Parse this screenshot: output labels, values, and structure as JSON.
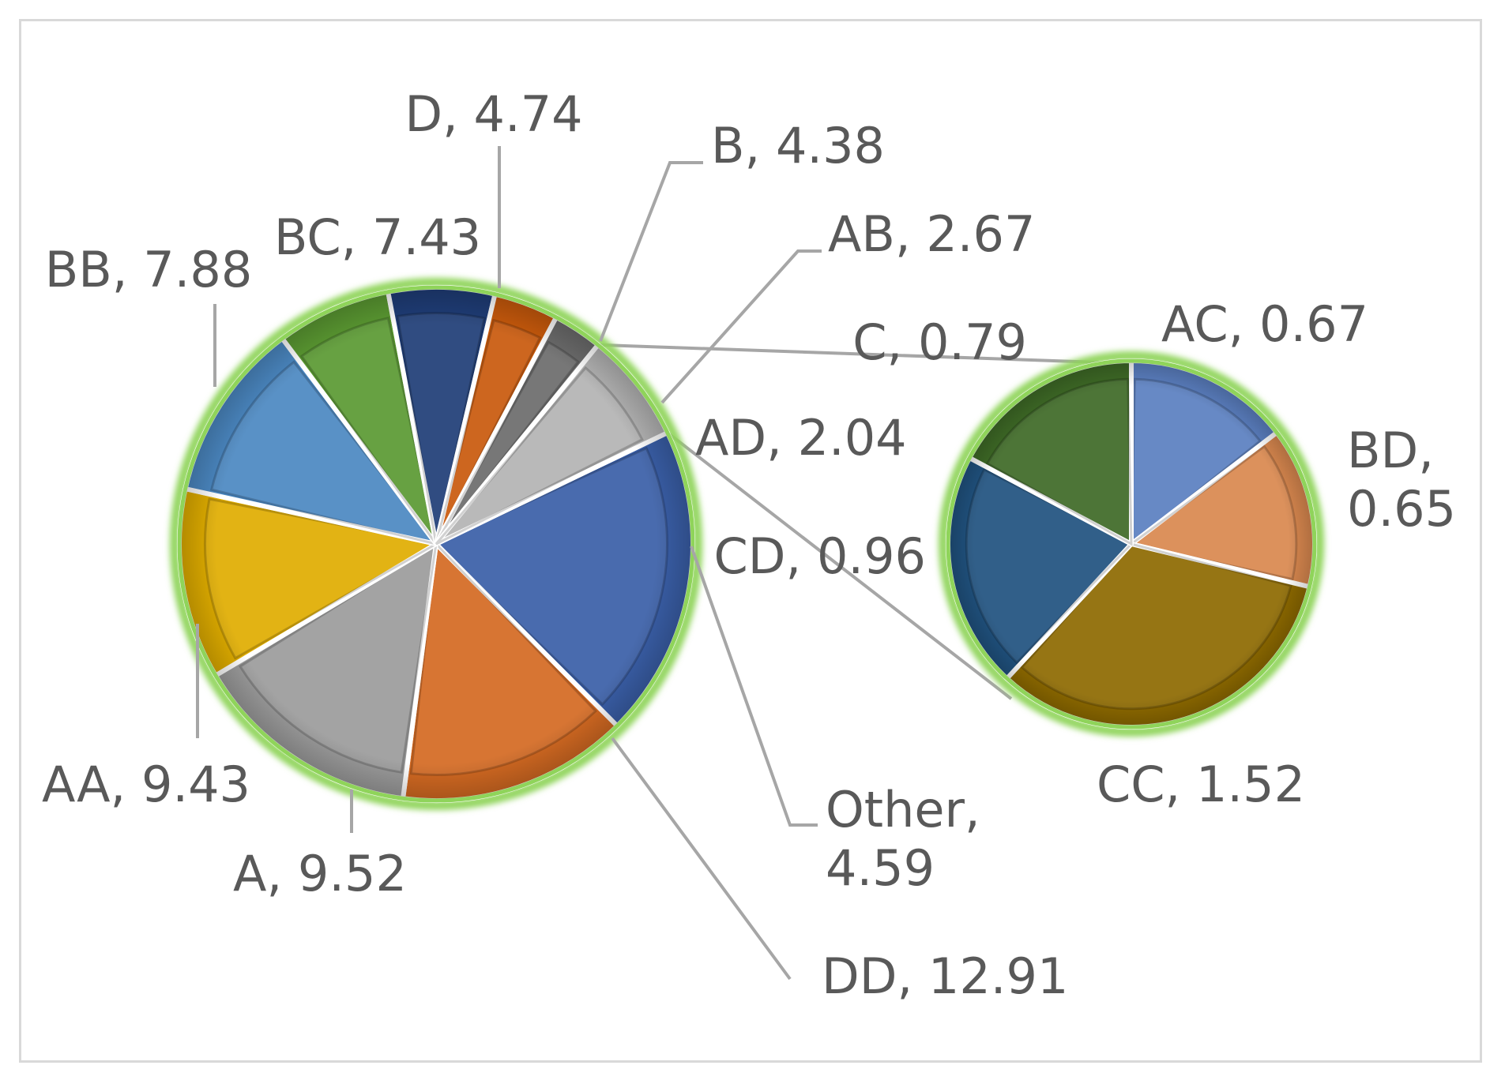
{
  "chart_data": {
    "type": "pie",
    "subtype": "pie-of-pie",
    "main_pie": [
      {
        "label": "DD",
        "value": 12.91,
        "color": "#3a5fa8"
      },
      {
        "label": "A",
        "value": 9.52,
        "color": "#d46a22"
      },
      {
        "label": "AA",
        "value": 9.43,
        "color": "#9c9c9c"
      },
      {
        "label": "BB",
        "value": 7.88,
        "color": "#e0ad00"
      },
      {
        "label": "BC",
        "value": 7.43,
        "color": "#4b88c2"
      },
      {
        "label": "D",
        "value": 4.74,
        "color": "#5b9a32"
      },
      {
        "label": "B",
        "value": 4.38,
        "color": "#1f3d77"
      },
      {
        "label": "AB",
        "value": 2.67,
        "color": "#c95a0c"
      },
      {
        "label": "AD",
        "value": 2.04,
        "color": "#6c6c6c"
      },
      {
        "label": "Other",
        "value": 4.59,
        "color": "#b4b4b4"
      }
    ],
    "secondary_pie": [
      {
        "label": "AC",
        "value": 0.67,
        "color": "#5b7fc0"
      },
      {
        "label": "BD",
        "value": 0.65,
        "color": "#d9884f"
      },
      {
        "label": "CC",
        "value": 1.52,
        "color": "#8e6a00"
      },
      {
        "label": "CD",
        "value": 0.96,
        "color": "#20527f"
      },
      {
        "label": "C",
        "value": 0.79,
        "color": "#3e6a26"
      }
    ],
    "labels": {
      "DD": [
        "DD, 12.91"
      ],
      "A": [
        "A, 9.52"
      ],
      "AA": [
        "AA, 9.43"
      ],
      "BB": [
        "BB, 7.88"
      ],
      "BC": [
        "BC, 7.43"
      ],
      "D": [
        "D, 4.74"
      ],
      "B": [
        "B, 4.38"
      ],
      "AB": [
        "AB, 2.67"
      ],
      "AD": [
        "AD, 2.04"
      ],
      "Other": [
        "Other,",
        "4.59"
      ],
      "AC": [
        "AC, 0.67"
      ],
      "BD": [
        "BD,",
        "0.65"
      ],
      "CC": [
        "CC, 1.52"
      ],
      "CD": [
        "CD, 0.96"
      ],
      "C": [
        "C, 0.79"
      ]
    },
    "outline_color": "#8fd45a",
    "leader_color": "#a6a6a6",
    "label_color": "#595959",
    "title": "",
    "legend": "none"
  }
}
